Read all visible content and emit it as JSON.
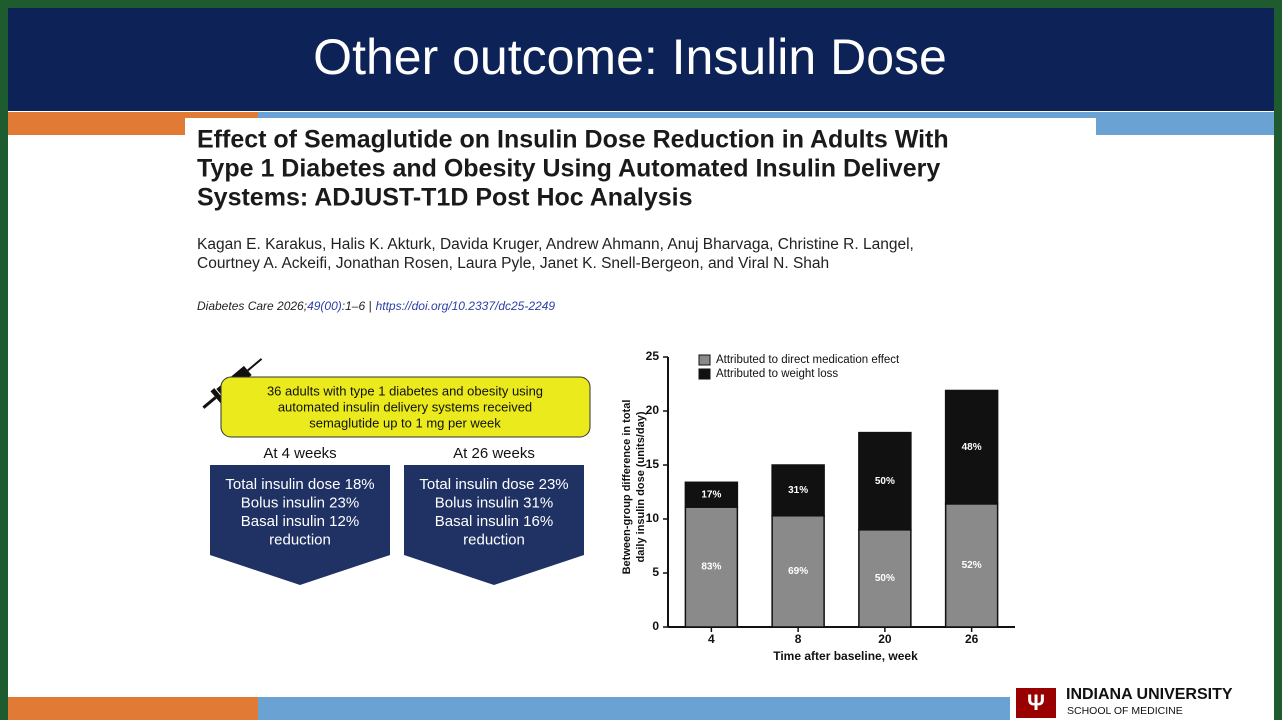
{
  "slide": {
    "title": "Other outcome: Insulin Dose"
  },
  "paper": {
    "title_lines": [
      "Effect of Semaglutide on Insulin Dose Reduction in Adults With",
      "Type 1 Diabetes and Obesity Using Automated Insulin Delivery",
      "Systems: ADJUST-T1D Post Hoc Analysis"
    ],
    "author_lines": [
      "Kagan E. Karakus, Halis K. Akturk, Davida Kruger, Andrew Ahmann, Anuj Bharvaga, Christine R. Langel,",
      "Courtney A. Ackeifi, Jonathan Rosen, Laura Pyle, Janet K. Snell-Bergeon, and Viral N. Shah"
    ],
    "journal": "Diabetes Care 2026;",
    "volume": "49(00)",
    "pages": ":1–6 |",
    "doi": "https://doi.org/10.2337/dc25-2249"
  },
  "summary": {
    "cohort_lines": [
      "36 adults with type 1 diabetes and obesity using",
      "automated insulin delivery systems received",
      "semaglutide up to 1 mg per week"
    ],
    "panels": [
      {
        "heading": "At 4 weeks",
        "lines": [
          "Total insulin dose 18%",
          "Bolus insulin 23%",
          "Basal insulin 12%",
          "reduction"
        ]
      },
      {
        "heading": "At 26 weeks",
        "lines": [
          "Total insulin dose 23%",
          "Bolus insulin 31%",
          "Basal insulin 16%",
          "reduction"
        ]
      }
    ]
  },
  "chart_data": {
    "type": "stacked_bar",
    "categories": [
      "4",
      "8",
      "20",
      "26"
    ],
    "series": [
      {
        "name": "Attributed to direct medication effect",
        "color": "#8a8a8a",
        "values": [
          11.1,
          10.3,
          9.0,
          11.4
        ],
        "percent_labels": [
          "83%",
          "69%",
          "50%",
          "52%"
        ]
      },
      {
        "name": "Attributed to weight loss",
        "color": "#111111",
        "values": [
          2.3,
          4.7,
          9.0,
          10.5
        ],
        "percent_labels": [
          "17%",
          "31%",
          "50%",
          "48%"
        ]
      }
    ],
    "ylim": [
      0,
      25
    ],
    "yticks": [
      0,
      5,
      10,
      15,
      20,
      25
    ],
    "x_label": "Time after baseline, week",
    "y_label_lines": [
      "Between-group difference in total",
      "daily insulin dose (units/day)"
    ]
  },
  "logo": {
    "name": "INDIANA UNIVERSITY",
    "school": "SCHOOL OF MEDICINE"
  }
}
